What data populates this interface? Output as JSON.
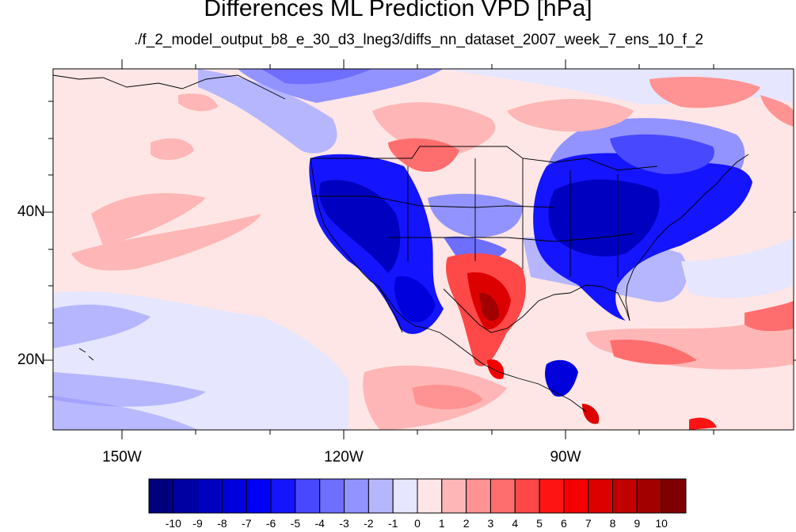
{
  "title": "Differences ML Prediction VPD [hPa]",
  "subtitle": "./f_2_model_output_b8_e_30_d3_lneg3/diffs_nn_dataset_2007_week_7_ens_10_f_2",
  "map": {
    "projection": "cylindrical equidistant",
    "lon_range": [
      -160,
      -61
    ],
    "lat_range": [
      10,
      59
    ],
    "lon_tick_labels": [
      "150W",
      "120W",
      "90W"
    ],
    "lat_tick_labels": [
      "40N",
      "20N"
    ]
  },
  "colorbar": {
    "labels": [
      "-10",
      "-9",
      "-8",
      "-7",
      "-6",
      "-5",
      "-4",
      "-3",
      "-2",
      "-1",
      "0",
      "1",
      "2",
      "3",
      "4",
      "5",
      "6",
      "7",
      "8",
      "9",
      "10"
    ],
    "colors": [
      "#00007f",
      "#0000a2",
      "#0000c1",
      "#0000dd",
      "#0000f5",
      "#1414ff",
      "#4848ff",
      "#6e6eff",
      "#9393ff",
      "#b6b6ff",
      "#e6e6ff",
      "#ffe6e6",
      "#ffb6b6",
      "#ff9393",
      "#ff6e6e",
      "#ff4848",
      "#ff1414",
      "#f50000",
      "#dd0000",
      "#c10000",
      "#a20000",
      "#7f0000"
    ]
  },
  "colors": {
    "background_field": "#ffe6e6",
    "land_outline": "#000000"
  }
}
